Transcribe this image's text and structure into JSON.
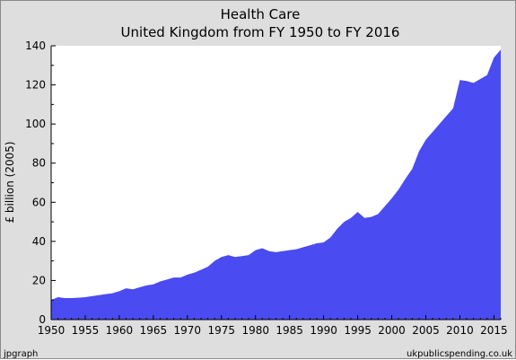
{
  "chart_data": {
    "type": "area",
    "title": "Health Care",
    "subtitle": "United Kingdom from FY 1950 to FY 2016",
    "xlabel": "",
    "ylabel": "£ billion (2005)",
    "xlim": [
      1950,
      2016
    ],
    "ylim": [
      0,
      140
    ],
    "x_ticks": [
      "1950",
      "1955",
      "1960",
      "1965",
      "1970",
      "1975",
      "1980",
      "1985",
      "1990",
      "1995",
      "2000",
      "2005",
      "2010",
      "2015"
    ],
    "y_ticks": [
      "0",
      "20",
      "40",
      "60",
      "80",
      "100",
      "120",
      "140"
    ],
    "grid": false,
    "legend": "none",
    "colors": {
      "fill": "#4b4bf2",
      "plot_bg": "#ffffff",
      "frame_bg": "#dedede"
    },
    "x": [
      1950,
      1951,
      1952,
      1953,
      1954,
      1955,
      1956,
      1957,
      1958,
      1959,
      1960,
      1961,
      1962,
      1963,
      1964,
      1965,
      1966,
      1967,
      1968,
      1969,
      1970,
      1971,
      1972,
      1973,
      1974,
      1975,
      1976,
      1977,
      1978,
      1979,
      1980,
      1981,
      1982,
      1983,
      1984,
      1985,
      1986,
      1987,
      1988,
      1989,
      1990,
      1991,
      1992,
      1993,
      1994,
      1995,
      1996,
      1997,
      1998,
      1999,
      2000,
      2001,
      2002,
      2003,
      2004,
      2005,
      2006,
      2007,
      2008,
      2009,
      2010,
      2011,
      2012,
      2013,
      2014,
      2015,
      2016
    ],
    "series": [
      {
        "values": [
          10,
          11.5,
          11,
          11,
          11.2,
          11.5,
          12,
          12.5,
          13,
          13.5,
          14.5,
          16,
          15.5,
          16.5,
          17.5,
          18,
          19.5,
          20.5,
          21.5,
          21.5,
          23,
          24,
          25.5,
          27,
          30,
          32,
          33,
          32,
          32.5,
          33,
          35.5,
          36.5,
          35,
          34.5,
          35,
          35.5,
          36,
          37,
          38,
          39,
          39.5,
          42,
          46.5,
          50,
          52,
          55,
          52,
          52.5,
          54,
          58,
          62,
          66.5,
          72,
          77,
          86,
          92,
          96,
          100,
          104,
          108,
          122.5,
          122,
          121,
          123,
          125,
          134,
          138
        ]
      }
    ]
  },
  "footer": {
    "left": "jpgraph",
    "right": "ukpublicspending.co.uk"
  }
}
